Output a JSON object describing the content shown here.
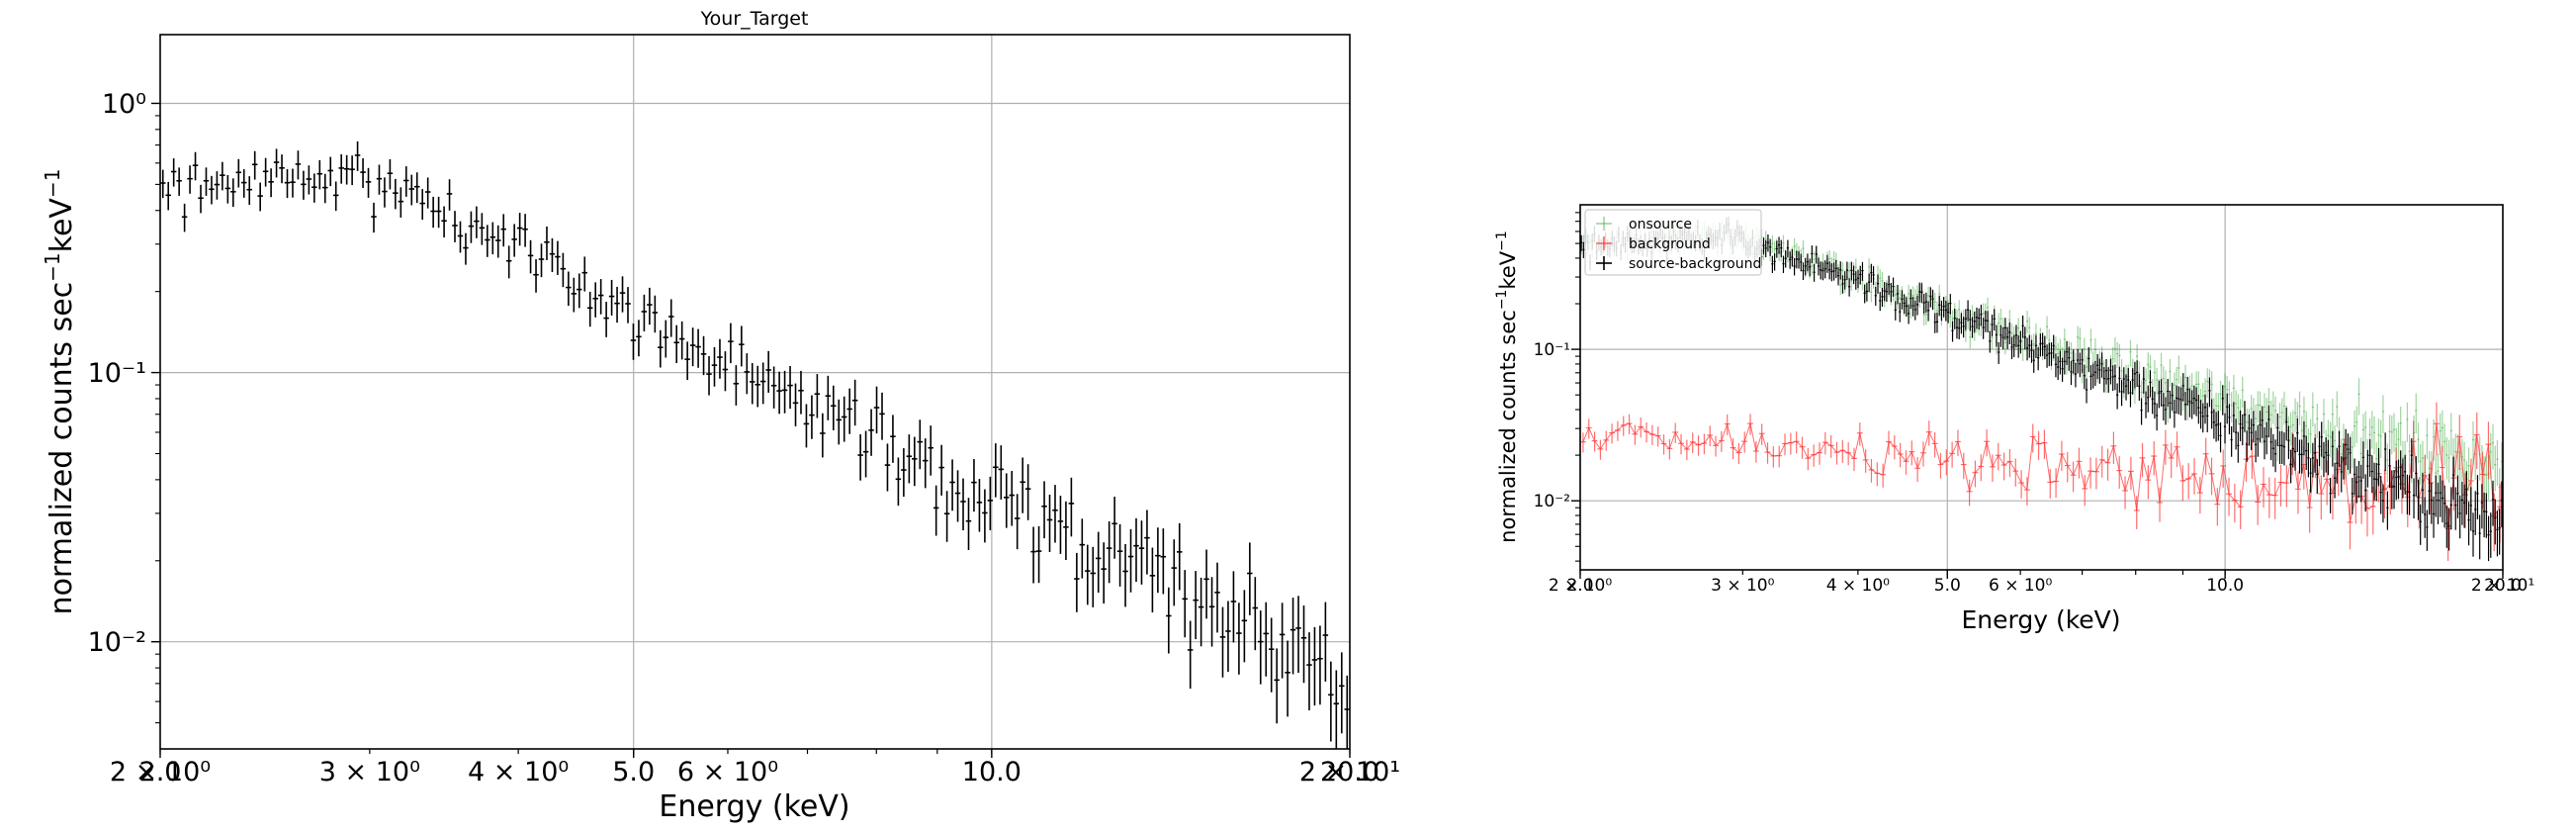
{
  "chart_data": [
    {
      "type": "scatter",
      "title": "Your_Target",
      "xlabel": "Energy (keV)",
      "ylabel": "normalized counts sec$^{-1}$keV$^{-1}$",
      "xscale": "log",
      "yscale": "log",
      "xlim": [
        2.0,
        20.0
      ],
      "ylim": [
        0.004,
        1.8
      ],
      "grid": true,
      "x_major_ticks": [
        {
          "value": 2.0,
          "label": "2.0"
        },
        {
          "value": 5.0,
          "label": "5.0"
        },
        {
          "value": 10.0,
          "label": "10.0"
        },
        {
          "value": 20.0,
          "label": "20.0"
        }
      ],
      "x_minor_tick_labels": [
        {
          "value": 2.0,
          "label": "2 × 10⁰"
        },
        {
          "value": 3.0,
          "label": "3 × 10⁰"
        },
        {
          "value": 4.0,
          "label": "4 × 10⁰"
        },
        {
          "value": 6.0,
          "label": "6 × 10⁰"
        },
        {
          "value": 20.0,
          "label": "2 × 10¹"
        }
      ],
      "y_major_ticks": [
        {
          "value": 0.01,
          "label": "10⁻²"
        },
        {
          "value": 0.1,
          "label": "10⁻¹"
        },
        {
          "value": 1.0,
          "label": "10⁰"
        }
      ],
      "series": [
        {
          "color": "#000000",
          "spectrum": {
            "norm": 0.55,
            "peak": 2.9,
            "lowSlope": 0.9,
            "highSlope": 2.25,
            "count": 220,
            "noise": 0.1,
            "errFrac": 0.12,
            "fadeFrom": 0.04
          }
        }
      ]
    },
    {
      "type": "scatter",
      "title": "",
      "xlabel": "Energy (keV)",
      "ylabel": "normalized counts sec$^{-1}$keV$^{-1}$",
      "xscale": "log",
      "yscale": "log",
      "xlim": [
        2.0,
        20.0
      ],
      "ylim": [
        0.0035,
        0.9
      ],
      "grid": true,
      "legend_position": "top-left",
      "x_major_ticks": [
        {
          "value": 2.0,
          "label": "2.0"
        },
        {
          "value": 5.0,
          "label": "5.0"
        },
        {
          "value": 10.0,
          "label": "10.0"
        },
        {
          "value": 20.0,
          "label": "20.0"
        }
      ],
      "x_minor_tick_labels": [
        {
          "value": 2.0,
          "label": "2 × 10⁰"
        },
        {
          "value": 3.0,
          "label": "3 × 10⁰"
        },
        {
          "value": 4.0,
          "label": "4 × 10⁰"
        },
        {
          "value": 6.0,
          "label": "6 × 10⁰"
        },
        {
          "value": 20.0,
          "label": "2 × 10¹"
        }
      ],
      "y_major_ticks": [
        {
          "value": 0.01,
          "label": "10⁻²"
        },
        {
          "value": 0.1,
          "label": "10⁻¹"
        }
      ],
      "series": [
        {
          "name": "onsource",
          "color": "#2ca02c",
          "alpha": 0.45,
          "spectrum": {
            "norm": 0.55,
            "peak": 2.9,
            "lowSlope": 0.9,
            "highSlope": 2.25,
            "floor": 0.012,
            "count": 420,
            "noise": 0.1,
            "errFrac": 0.12
          }
        },
        {
          "name": "background",
          "color": "#ff3030",
          "alpha": 0.7,
          "spectrum": {
            "flat": true,
            "start": 0.027,
            "mid": 0.018,
            "end": 0.011,
            "count": 160,
            "noise": 0.16,
            "errFrac": 0.15
          }
        },
        {
          "name": "source-background",
          "color": "#000000",
          "alpha": 1.0,
          "spectrum": {
            "norm": 0.55,
            "peak": 2.9,
            "lowSlope": 0.9,
            "highSlope": 2.25,
            "count": 420,
            "noise": 0.1,
            "errFrac": 0.12
          }
        }
      ]
    }
  ]
}
